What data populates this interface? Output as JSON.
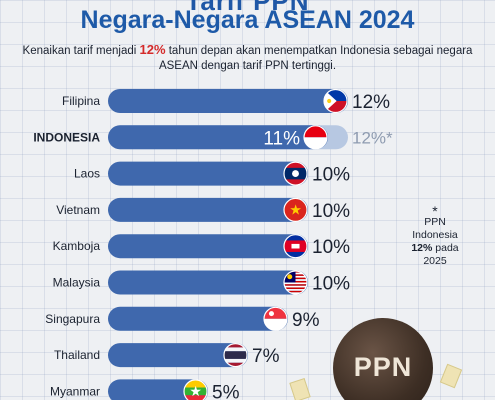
{
  "header": {
    "title_top": "Tarif PPN",
    "title_main": "Negara-Negara ASEAN 2024",
    "subtitle_pre": "Kenaikan tarif menjadi ",
    "subtitle_highlight": "12%",
    "subtitle_post": " tahun depan akan menempatkan Indonesia sebagai negara ASEAN dengan tarif PPN tertinggi."
  },
  "footnote": {
    "star": "*",
    "line1": "PPN",
    "line2": "Indonesia",
    "line3": "12%",
    "line4": "pada",
    "line5": "2025"
  },
  "badge": {
    "label": "PPN"
  },
  "colors": {
    "bar": "#3f68ad",
    "bar_light": "#b7c8e2",
    "title": "#1e5aa8",
    "highlight": "#d42a2a",
    "label": "#1b2230"
  },
  "chart_data": {
    "type": "bar",
    "orientation": "horizontal",
    "unit": "%",
    "xlim": [
      0,
      12
    ],
    "categories": [
      "Filipina",
      "INDONESIA",
      "Laos",
      "Vietnam",
      "Kamboja",
      "Malaysia",
      "Singapura",
      "Thailand",
      "Myanmar"
    ],
    "values": [
      12,
      11,
      10,
      10,
      10,
      10,
      9,
      7,
      5
    ],
    "value_labels": [
      "12%",
      "11%",
      "10%",
      "10%",
      "10%",
      "10%",
      "9%",
      "7%",
      "5%"
    ],
    "flags": [
      "philippines-flag-icon",
      "indonesia-flag-icon",
      "laos-flag-icon",
      "vietnam-flag-icon",
      "cambodia-flag-icon",
      "malaysia-flag-icon",
      "singapore-flag-icon",
      "thailand-flag-icon",
      "myanmar-flag-icon"
    ],
    "highlight_category": "INDONESIA",
    "projected": {
      "category": "INDONESIA",
      "value": 12,
      "label": "12%*"
    }
  }
}
